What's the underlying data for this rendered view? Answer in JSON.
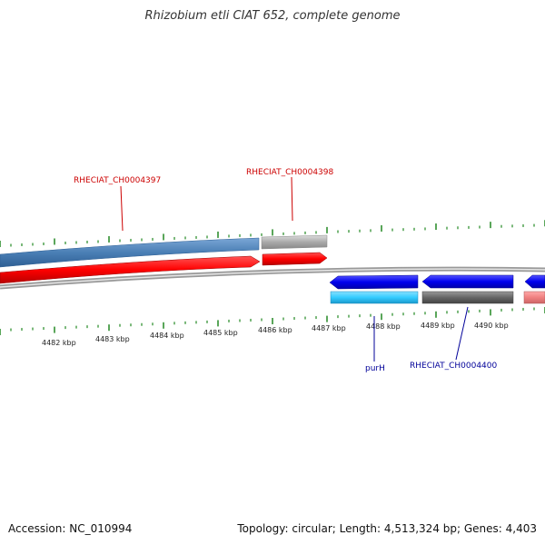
{
  "title": "Rhizobium etli CIAT 652, complete genome",
  "footer": {
    "accession": "Accession: NC_010994",
    "summary": "Topology: circular; Length: 4,513,324 bp; Genes: 4,403"
  },
  "scale_labels": [
    "4482 kbp",
    "4483 kbp",
    "4484 kbp",
    "4485 kbp",
    "4486 kbp",
    "4487 kbp",
    "4488 kbp",
    "4489 kbp",
    "4490 kbp"
  ],
  "gene_labels": {
    "g4397": "RHECIAT_CH0004397",
    "g4398": "RHECIAT_CH0004398",
    "purH": "purH",
    "g4400": "RHECIAT_CH0004400"
  },
  "colors": {
    "forward_cds": "#ff0000",
    "forward_gene": "#4a7fb5",
    "reverse_cds": "#0000ee",
    "reverse_gene": "#33ccff",
    "grey_gene": "#aaaaaa",
    "tick": "#228822",
    "backbone": "#777777"
  }
}
